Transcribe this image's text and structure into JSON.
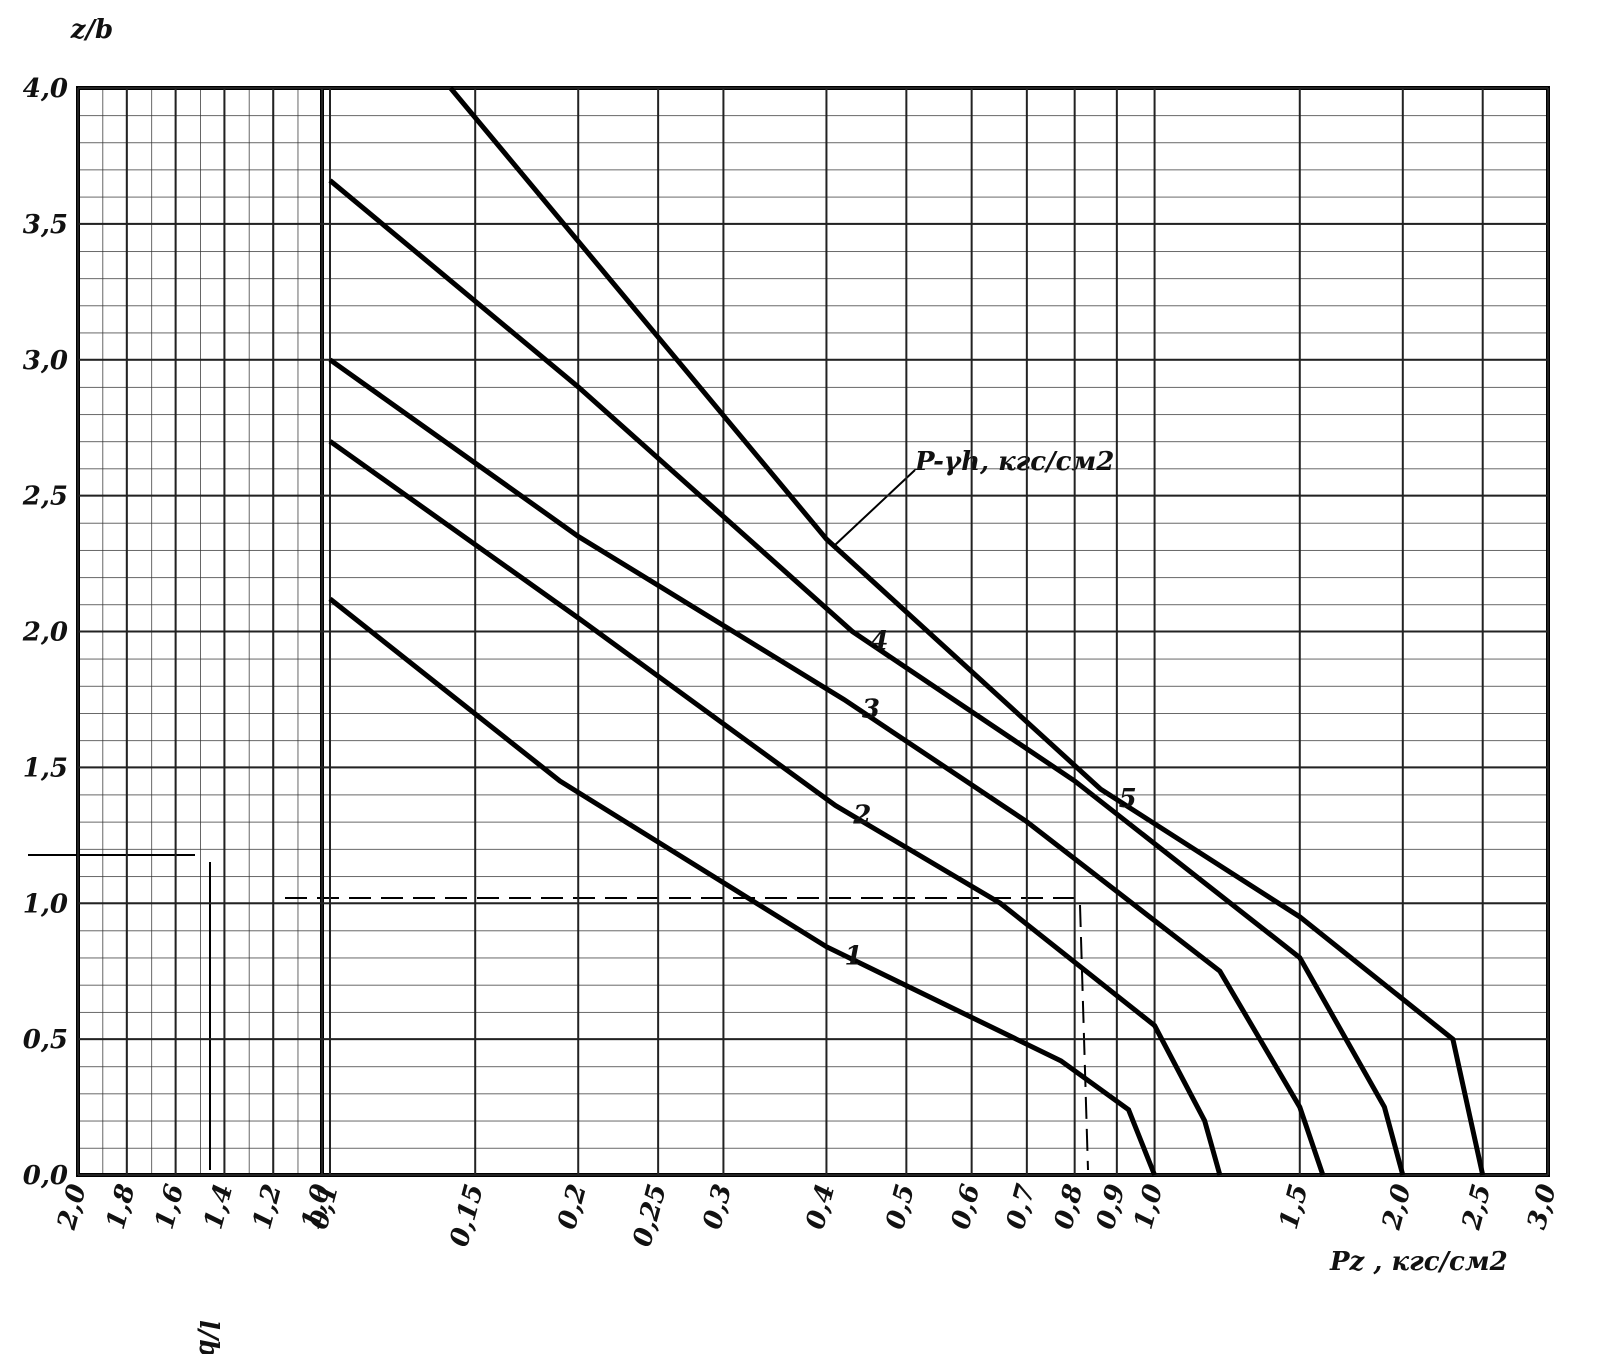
{
  "chart_data": {
    "type": "line",
    "title": "z/b",
    "xlabel": "Pz , кгс/см2",
    "x2label": "l/b =",
    "annotation": "P-γh, кгс/см2",
    "xscale": "log",
    "grid": true,
    "color": "#000000",
    "xlim": [
      0.1,
      3.0
    ],
    "xticks": [
      {
        "value": 0.1,
        "label": "0,1"
      },
      {
        "value": 0.15,
        "label": "0,15"
      },
      {
        "value": 0.2,
        "label": "0,2"
      },
      {
        "value": 0.25,
        "label": "0,25"
      },
      {
        "value": 0.3,
        "label": "0,3"
      },
      {
        "value": 0.4,
        "label": "0,4"
      },
      {
        "value": 0.5,
        "label": "0,5"
      },
      {
        "value": 0.6,
        "label": "0,6"
      },
      {
        "value": 0.7,
        "label": "0,7"
      },
      {
        "value": 0.8,
        "label": "0,8"
      },
      {
        "value": 0.9,
        "label": "0,9"
      },
      {
        "value": 1.0,
        "label": "1,0"
      },
      {
        "value": 1.5,
        "label": "1,5"
      },
      {
        "value": 2.0,
        "label": "2,0"
      },
      {
        "value": 2.5,
        "label": "2,5"
      },
      {
        "value": 3.0,
        "label": "3,0"
      }
    ],
    "x2lim": [
      2.0,
      1.0
    ],
    "x2ticks": [
      {
        "value": 2.0,
        "label": "2,0"
      },
      {
        "value": 1.8,
        "label": "1,8"
      },
      {
        "value": 1.6,
        "label": "1,6"
      },
      {
        "value": 1.4,
        "label": "1,4"
      },
      {
        "value": 1.2,
        "label": "1,2"
      },
      {
        "value": 1.0,
        "label": "1,0"
      }
    ],
    "ylim": [
      0,
      4.0
    ],
    "yticks": [
      {
        "value": 0,
        "label": "0,0"
      },
      {
        "value": 0.5,
        "label": "0,5"
      },
      {
        "value": 1.0,
        "label": "1,0"
      },
      {
        "value": 1.5,
        "label": "1,5"
      },
      {
        "value": 2.0,
        "label": "2,0"
      },
      {
        "value": 2.5,
        "label": "2,5"
      },
      {
        "value": 3.0,
        "label": "3,0"
      },
      {
        "value": 3.5,
        "label": "3,5"
      },
      {
        "value": 4.0,
        "label": "4,0"
      }
    ],
    "series": [
      {
        "name": "1",
        "x": [
          0.1,
          0.19,
          0.4,
          0.77,
          0.93,
          1.0
        ],
        "values": [
          2.12,
          1.45,
          0.84,
          0.42,
          0.24,
          0
        ]
      },
      {
        "name": "2",
        "x": [
          0.1,
          0.2,
          0.41,
          0.65,
          1.0,
          1.15,
          1.2
        ],
        "values": [
          2.7,
          2.05,
          1.36,
          1.0,
          0.55,
          0.2,
          0
        ]
      },
      {
        "name": "3",
        "x": [
          0.1,
          0.2,
          0.42,
          0.7,
          1.2,
          1.5,
          1.6
        ],
        "values": [
          3.0,
          2.35,
          1.75,
          1.3,
          0.75,
          0.25,
          0
        ]
      },
      {
        "name": "4",
        "x": [
          0.1,
          0.2,
          0.43,
          0.8,
          1.5,
          1.9,
          2.0
        ],
        "values": [
          3.66,
          2.9,
          2.0,
          1.45,
          0.8,
          0.25,
          0
        ]
      },
      {
        "name": "5",
        "x": [
          0.14,
          0.4,
          0.86,
          1.5,
          2.3,
          2.5
        ],
        "values": [
          4.0,
          2.34,
          1.42,
          0.95,
          0.5,
          0
        ]
      }
    ]
  }
}
